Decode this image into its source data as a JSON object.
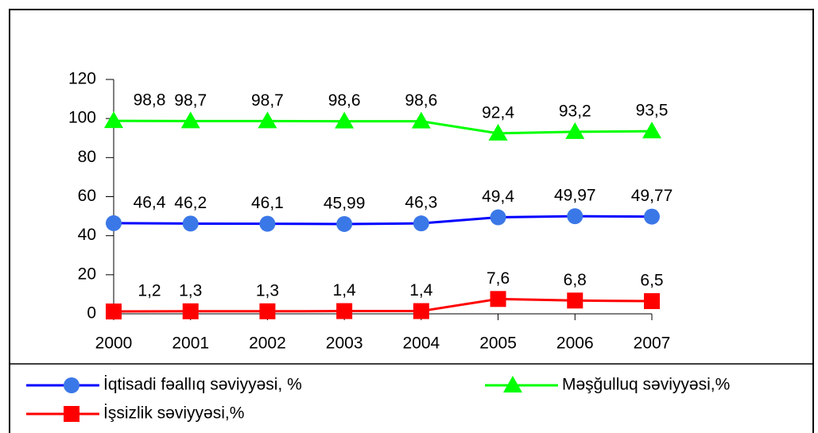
{
  "chart_data": {
    "type": "line",
    "categories": [
      "2000",
      "2001",
      "2002",
      "2003",
      "2004",
      "2005",
      "2006",
      "2007"
    ],
    "series": [
      {
        "name": "İqtisadi fəallıq səviyyəsi, %",
        "color": "#0000ff",
        "marker": "circle",
        "markerColor": "#3b78e7",
        "values": [
          46.4,
          46.2,
          46.1,
          45.99,
          46.3,
          49.4,
          49.97,
          49.77
        ],
        "value_labels": [
          "46,4",
          "46,2",
          "46,1",
          "45,99",
          "46,3",
          "49,4",
          "49,97",
          "49,77"
        ]
      },
      {
        "name": "Məşğulluq səviyyəsi,%",
        "color": "#00ff00",
        "marker": "triangle",
        "markerColor": "#00ff00",
        "values": [
          98.8,
          98.7,
          98.7,
          98.6,
          98.6,
          92.4,
          93.2,
          93.5
        ],
        "value_labels": [
          "98,8",
          "98,7",
          "98,7",
          "98,6",
          "98,6",
          "92,4",
          "93,2",
          "93,5"
        ]
      },
      {
        "name": "İşsizlik səviyyəsi,%",
        "color": "#ff0000",
        "marker": "square",
        "markerColor": "#ff0000",
        "values": [
          1.2,
          1.3,
          1.3,
          1.4,
          1.4,
          7.6,
          6.8,
          6.5
        ],
        "value_labels": [
          "1,2",
          "1,3",
          "1,3",
          "1,4",
          "1,4",
          "7,6",
          "6,8",
          "6,5"
        ]
      }
    ],
    "ylim": [
      0,
      120
    ],
    "yticks": [
      0,
      20,
      40,
      60,
      80,
      100,
      120
    ]
  }
}
